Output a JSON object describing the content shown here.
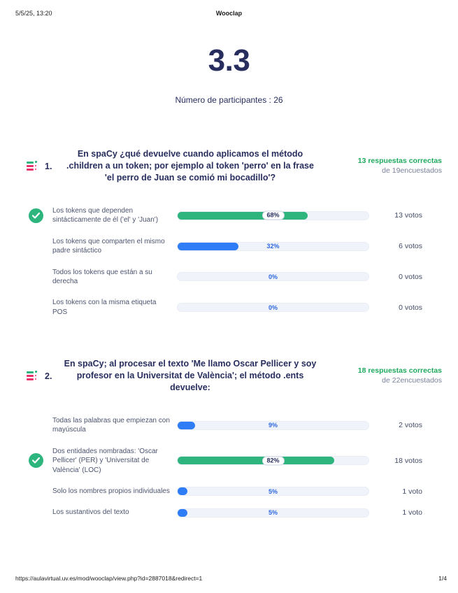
{
  "colors": {
    "navy": "#272e5e",
    "green": "#2eb57e",
    "green-text": "#1fa95e",
    "blue": "#2e7cf6",
    "pink": "#e8336d",
    "pct-blue": "#2d68e0",
    "track": "#f0f3f9",
    "muted": "#7b819c",
    "option-text": "#4c546f",
    "votes": "#424a66"
  },
  "header": {
    "datetime": "5/5/25, 13:20",
    "app_title": "Wooclap"
  },
  "score": "3.3",
  "participants_label": "Número de participantes : 26",
  "questions": [
    {
      "number": "1.",
      "text": "En spaCy ¿qué devuelve cuando aplicamos el método .children a un token; por ejemplo al token 'perro' en la frase 'el perro de Juan se comió mi bocadillo'?",
      "correct_label": "13 respuestas correctas",
      "respondents_label": "de 19encuestados",
      "answers": [
        {
          "text": "Los tokens que dependen sintácticamente de él ('el' y 'Juan')",
          "percent": 68,
          "percent_label": "68%",
          "votes_label": "13 votos",
          "correct": true
        },
        {
          "text": "Los tokens que comparten el mismo padre sintáctico",
          "percent": 32,
          "percent_label": "32%",
          "votes_label": "6 votos",
          "correct": false
        },
        {
          "text": "Todos los tokens que están a su derecha",
          "percent": 0,
          "percent_label": "0%",
          "votes_label": "0 votos",
          "correct": false
        },
        {
          "text": "Los tokens con la misma etiqueta POS",
          "percent": 0,
          "percent_label": "0%",
          "votes_label": "0 votos",
          "correct": false
        }
      ]
    },
    {
      "number": "2.",
      "text": "En spaCy; al procesar el texto 'Me llamo Oscar Pellicer y soy profesor en la Universitat de València'; el método .ents devuelve:",
      "correct_label": "18 respuestas correctas",
      "respondents_label": "de 22encuestados",
      "answers": [
        {
          "text": "Todas las palabras que empiezan con mayúscula",
          "percent": 9,
          "percent_label": "9%",
          "votes_label": "2 votos",
          "correct": false
        },
        {
          "text": "Dos entidades nombradas: 'Oscar Pellicer' (PER) y 'Universitat de València' (LOC)",
          "percent": 82,
          "percent_label": "82%",
          "votes_label": "18 votos",
          "correct": true
        },
        {
          "text": "Solo los nombres propios individuales",
          "percent": 5,
          "percent_label": "5%",
          "votes_label": "1 voto",
          "correct": false
        },
        {
          "text": "Los sustantivos del texto",
          "percent": 5,
          "percent_label": "5%",
          "votes_label": "1 voto",
          "correct": false
        }
      ]
    }
  ],
  "footer": {
    "url": "https://aulavirtual.uv.es/mod/wooclap/view.php?id=2887018&redirect=1",
    "page_indicator": "1/4"
  }
}
